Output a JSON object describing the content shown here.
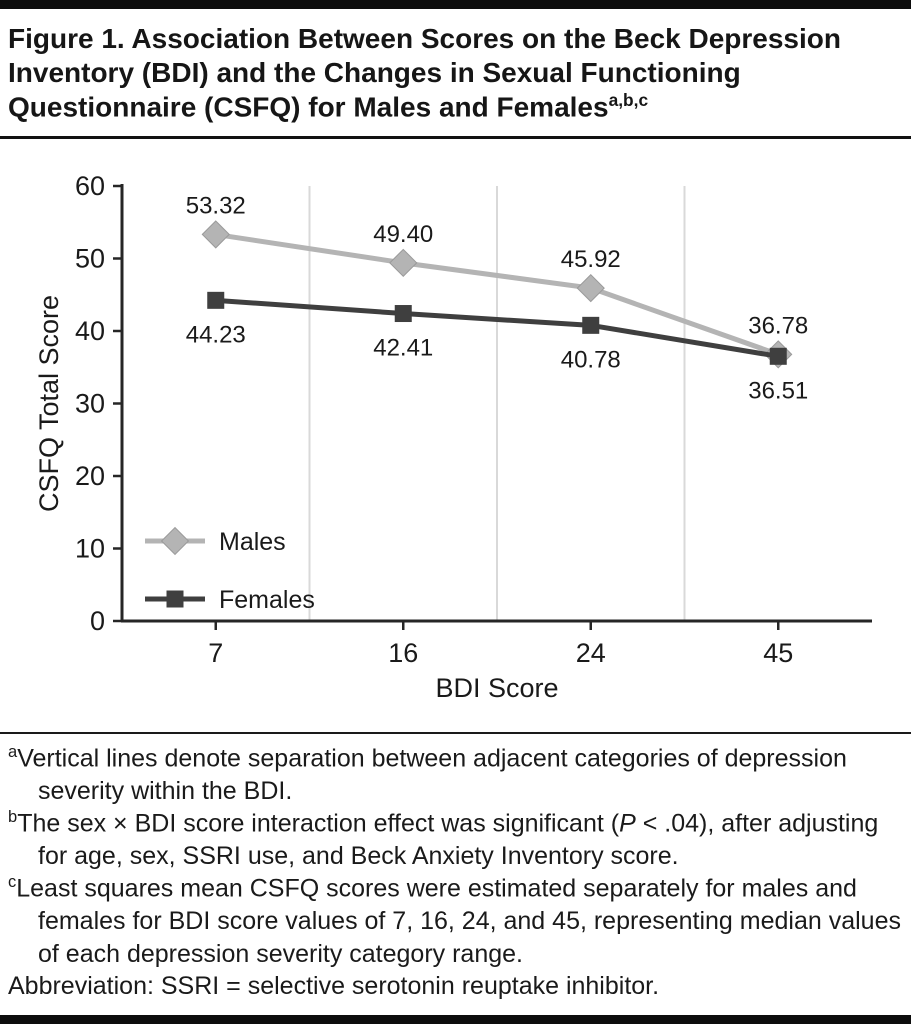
{
  "figure": {
    "title": "Figure 1. Association Between Scores on the Beck Depression Inventory (BDI) and the Changes in Sexual Functioning Questionnaire (CSFQ) for Males and Females",
    "title_sup": "a,b,c"
  },
  "chart_data": {
    "type": "line",
    "categories": [
      "7",
      "16",
      "24",
      "45"
    ],
    "series": [
      {
        "name": "Males",
        "marker": "diamond",
        "color": "#b4b4b4",
        "values": [
          53.32,
          49.4,
          45.92,
          36.78
        ],
        "labels": [
          "53.32",
          "49.40",
          "45.92",
          "36.78"
        ],
        "label_position": "above"
      },
      {
        "name": "Females",
        "marker": "square",
        "color": "#3f3f3f",
        "values": [
          44.23,
          42.41,
          40.78,
          36.51
        ],
        "labels": [
          "44.23",
          "42.41",
          "40.78",
          "36.51"
        ],
        "label_position": "below"
      }
    ],
    "xlabel": "BDI Score",
    "ylabel": "CSFQ Total Score",
    "ylim": [
      0,
      60
    ],
    "yticks": [
      0,
      10,
      20,
      30,
      40,
      50,
      60
    ],
    "grid": "vertical-category-separators",
    "legend_position": "inside-lower-left",
    "colors": {
      "grid": "#d9d9d9",
      "axis": "#262626",
      "marker_edge": "#9a9a9a",
      "label": "#1a1a1a"
    }
  },
  "footnotes": [
    {
      "marker": "a",
      "parts": [
        {
          "text": "Vertical lines denote separation between adjacent categories of depression severity within the BDI."
        }
      ]
    },
    {
      "marker": "b",
      "parts": [
        {
          "text": "The sex × BDI score interaction effect was significant ("
        },
        {
          "text": "P",
          "italic": true
        },
        {
          "text": " < .04), after adjusting for age, sex, SSRI use, and Beck Anxiety Inventory score."
        }
      ]
    },
    {
      "marker": "c",
      "parts": [
        {
          "text": "Least squares mean CSFQ scores were estimated separately for males and females for BDI score values of 7, 16, 24, and 45, representing median values of each depression severity category range."
        }
      ]
    }
  ],
  "abbreviation_line": "Abbreviation: SSRI = selective serotonin reuptake inhibitor."
}
